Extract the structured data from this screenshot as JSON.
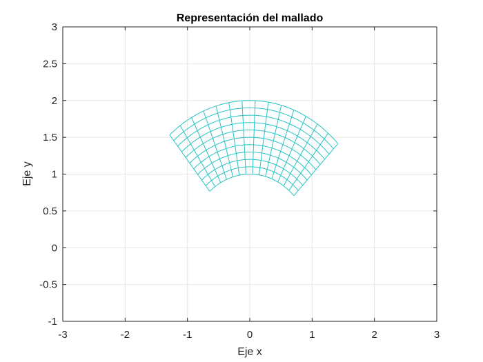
{
  "chart_data": {
    "type": "mesh",
    "title": "Representación del mallado",
    "xlabel": "Eje x",
    "ylabel": "Eje y",
    "xlim": [
      -3,
      3
    ],
    "ylim": [
      -1,
      3
    ],
    "xticks": [
      -3,
      -2,
      -1,
      0,
      1,
      2,
      3
    ],
    "yticks": [
      -1,
      -0.5,
      0,
      0.5,
      1,
      1.5,
      2,
      2.5,
      3
    ],
    "xtick_labels": [
      "-3",
      "-2",
      "-1",
      "0",
      "1",
      "2",
      "3"
    ],
    "ytick_labels": [
      "-1",
      "-0.5",
      "0",
      "0.5",
      "1",
      "1.5",
      "2",
      "2.5",
      "3"
    ],
    "grid": true,
    "mesh": {
      "shape": "annular sector",
      "inner_radius": 1,
      "outer_radius": 2,
      "theta_start_deg": 45,
      "theta_end_deg": 130,
      "radial_divisions": 10,
      "angular_divisions": 14,
      "color": "#27c3c3"
    }
  }
}
